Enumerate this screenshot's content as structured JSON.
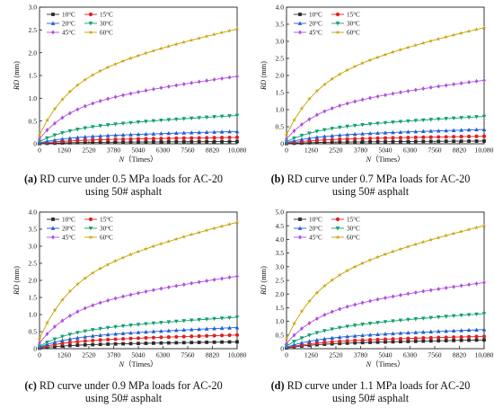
{
  "colors": {
    "10°C": "#2b2b2b",
    "15°C": "#e02020",
    "20°C": "#1f5fd6",
    "30°C": "#10a070",
    "45°C": "#b04fe0",
    "60°C": "#c8a000"
  },
  "chart_data": [
    {
      "type": "line",
      "caption_label": "(a)",
      "caption_line1": "RD curve under 0.5 MPa loads for AC-20",
      "caption_line2": "using 50# asphalt",
      "xlabel_italic": "N",
      "xlabel_rest": "（Times）",
      "ylabel_italic": "RD",
      "ylabel_rest": " (mm)",
      "xlim": [
        0,
        10080
      ],
      "ylim": [
        0,
        3.0
      ],
      "xticks": [
        0,
        1260,
        2520,
        3780,
        5040,
        6300,
        7560,
        8820,
        10080
      ],
      "xtick_labels": [
        "0",
        "1260",
        "2520",
        "3780",
        "5040",
        "6300",
        "7560",
        "8820",
        "10,080"
      ],
      "yticks": [
        0,
        0.5,
        1.0,
        1.5,
        2.0,
        2.5,
        3.0
      ],
      "ytick_labels": [
        "0",
        "0.5",
        "1.0",
        "1.5",
        "2.0",
        "2.5",
        "3.0"
      ],
      "legend": "top-left",
      "series": [
        {
          "name": "10°C",
          "final": 0.05
        },
        {
          "name": "15°C",
          "final": 0.14
        },
        {
          "name": "20°C",
          "final": 0.27
        },
        {
          "name": "30°C",
          "final": 0.62
        },
        {
          "name": "45°C",
          "final": 1.48
        },
        {
          "name": "60°C",
          "final": 2.52
        }
      ]
    },
    {
      "type": "line",
      "caption_label": "(b)",
      "caption_line1": "RD curve under 0.7 MPa loads for AC-20",
      "caption_line2": "using 50# asphalt",
      "xlabel_italic": "N",
      "xlabel_rest": "（Times）",
      "ylabel_italic": "RD",
      "ylabel_rest": " (mm)",
      "xlim": [
        0,
        10080
      ],
      "ylim": [
        0,
        4.0
      ],
      "xticks": [
        0,
        1260,
        2520,
        3780,
        5040,
        6300,
        7560,
        8820,
        10080
      ],
      "xtick_labels": [
        "0",
        "1260",
        "2520",
        "3780",
        "5040",
        "6300",
        "7560",
        "8820",
        "10,080"
      ],
      "yticks": [
        0,
        0.5,
        1.0,
        1.5,
        2.0,
        2.5,
        3.0,
        3.5,
        4.0
      ],
      "ytick_labels": [
        "0",
        "0.5",
        "1.0",
        "1.5",
        "2.0",
        "2.5",
        "3.0",
        "3.5",
        "4.0"
      ],
      "legend": "top-left",
      "series": [
        {
          "name": "10°C",
          "final": 0.08
        },
        {
          "name": "15°C",
          "final": 0.22
        },
        {
          "name": "20°C",
          "final": 0.42
        },
        {
          "name": "30°C",
          "final": 0.8
        },
        {
          "name": "45°C",
          "final": 1.86
        },
        {
          "name": "60°C",
          "final": 3.4
        }
      ]
    },
    {
      "type": "line",
      "caption_label": "(c)",
      "caption_line1": "RD curve under 0.9 MPa loads for AC-20",
      "caption_line2": "using 50# asphalt",
      "xlabel_italic": "N",
      "xlabel_rest": "（Times）",
      "ylabel_italic": "RD",
      "ylabel_rest": " (mm)",
      "xlim": [
        0,
        10080
      ],
      "ylim": [
        0,
        4.0
      ],
      "xticks": [
        0,
        1260,
        2520,
        3780,
        5040,
        6300,
        7560,
        8820,
        10080
      ],
      "xtick_labels": [
        "0",
        "1260",
        "2520",
        "3780",
        "5040",
        "6300",
        "7560",
        "8820",
        "10,080"
      ],
      "yticks": [
        0,
        0.5,
        1.0,
        1.5,
        2.0,
        2.5,
        3.0,
        3.5,
        4.0
      ],
      "ytick_labels": [
        "0",
        "0.5",
        "1.0",
        "1.5",
        "2.0",
        "2.5",
        "3.0",
        "3.5",
        "4.0"
      ],
      "legend": "top-left",
      "series": [
        {
          "name": "10°C",
          "final": 0.2
        },
        {
          "name": "15°C",
          "final": 0.4
        },
        {
          "name": "20°C",
          "final": 0.62
        },
        {
          "name": "30°C",
          "final": 0.92
        },
        {
          "name": "45°C",
          "final": 2.12
        },
        {
          "name": "60°C",
          "final": 3.7
        }
      ]
    },
    {
      "type": "line",
      "caption_label": "(d)",
      "caption_line1": "RD curve under 1.1 MPa loads for AC-20",
      "caption_line2": "using 50# asphalt",
      "xlabel_italic": "N",
      "xlabel_rest": "（Times）",
      "ylabel_italic": "RD",
      "ylabel_rest": " (mm)",
      "xlim": [
        0,
        10080
      ],
      "ylim": [
        0,
        5.0
      ],
      "xticks": [
        0,
        1260,
        2520,
        3780,
        5040,
        6300,
        7560,
        8820,
        10080
      ],
      "xtick_labels": [
        "0",
        "1260",
        "2520",
        "3780",
        "5040",
        "6300",
        "7560",
        "8820",
        "10,080"
      ],
      "yticks": [
        0,
        0.5,
        1.0,
        1.5,
        2.0,
        2.5,
        3.0,
        3.5,
        4.0,
        4.5,
        5.0
      ],
      "ytick_labels": [
        "0",
        "0.5",
        "1.0",
        "1.5",
        "2.0",
        "2.5",
        "3.0",
        "3.5",
        "4.0",
        "4.5",
        "5.0"
      ],
      "legend": "top-left",
      "series": [
        {
          "name": "10°C",
          "final": 0.32
        },
        {
          "name": "15°C",
          "final": 0.45
        },
        {
          "name": "20°C",
          "final": 0.7
        },
        {
          "name": "30°C",
          "final": 1.28
        },
        {
          "name": "45°C",
          "final": 2.42
        },
        {
          "name": "60°C",
          "final": 4.5
        }
      ]
    }
  ]
}
